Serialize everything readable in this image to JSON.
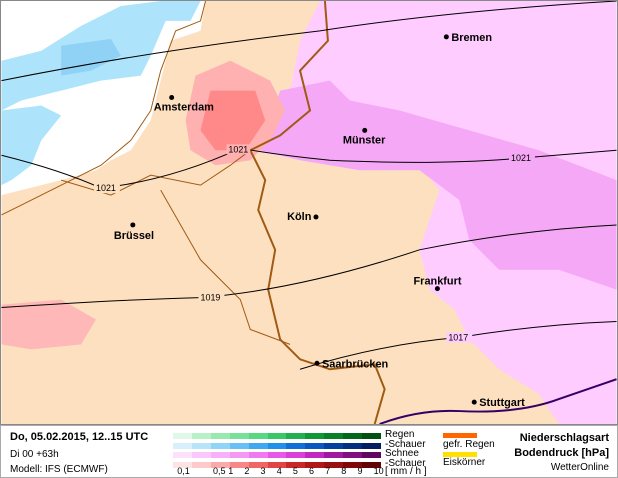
{
  "map": {
    "cities": [
      {
        "name": "Bremen"
      },
      {
        "name": "Amsterdam"
      },
      {
        "name": "Münster"
      },
      {
        "name": "Köln"
      },
      {
        "name": "Brüssel"
      },
      {
        "name": "Frankfurt"
      },
      {
        "name": "Saarbrücken"
      },
      {
        "name": "Stuttgart"
      }
    ],
    "isobars": [
      "1021",
      "1021",
      "1021",
      "1019",
      "1017"
    ],
    "colors": {
      "land": "#fde0bf",
      "sea": "#ffffff",
      "snow": "#ffccff",
      "snow_heavy": "#f5a8f5",
      "rain_shower": "#ff8888",
      "sea_shower": "#aee4fb",
      "border": "#a05a14"
    }
  },
  "legend": {
    "date": "Do, 05.02.2015, 12..15 UTC",
    "run": "Di 00 +63h",
    "model": "Modell: IFS (ECMWF)",
    "rows": [
      {
        "label": "Regen",
        "colors": [
          "#e0f8e8",
          "#b8f0c8",
          "#98e8b0",
          "#78e098",
          "#58d880",
          "#38c868",
          "#20b050",
          "#109838",
          "#088028",
          "#006818",
          "#005010"
        ]
      },
      {
        "label": "-Schauer",
        "colors": [
          "#d8f0fc",
          "#b8e4fa",
          "#90d4f8",
          "#68c0f4",
          "#40a8f0",
          "#2090e8",
          "#1070d8",
          "#0858c0",
          "#0440a0",
          "#023080",
          "#012060"
        ]
      },
      {
        "label": "Schnee",
        "colors": [
          "#fce0fc",
          "#fac8fa",
          "#f8b0f8",
          "#f498f4",
          "#f078f0",
          "#e858e8",
          "#d840d8",
          "#c028c0",
          "#a018a0",
          "#801080",
          "#600860"
        ]
      },
      {
        "label": "-Schauer",
        "colors": [
          "#fde4e4",
          "#fccaca",
          "#faaaaa",
          "#f88888",
          "#f06666",
          "#e04444",
          "#c82828",
          "#b01818",
          "#981010",
          "#800808",
          "#600404"
        ]
      }
    ],
    "ticks": [
      "0,1",
      "0,5",
      "1",
      "2",
      "3",
      "4",
      "5",
      "6",
      "7",
      "8",
      "9",
      "10"
    ],
    "unit": "[ mm / h ]",
    "extra": [
      {
        "label": "gefr. Regen",
        "color": "#ff6600"
      },
      {
        "label": "Eiskörner",
        "color": "#ffe000"
      }
    ],
    "title1": "Niederschlagsart",
    "title2": "Bodendruck [hPa]",
    "brand": "WetterOnline"
  }
}
